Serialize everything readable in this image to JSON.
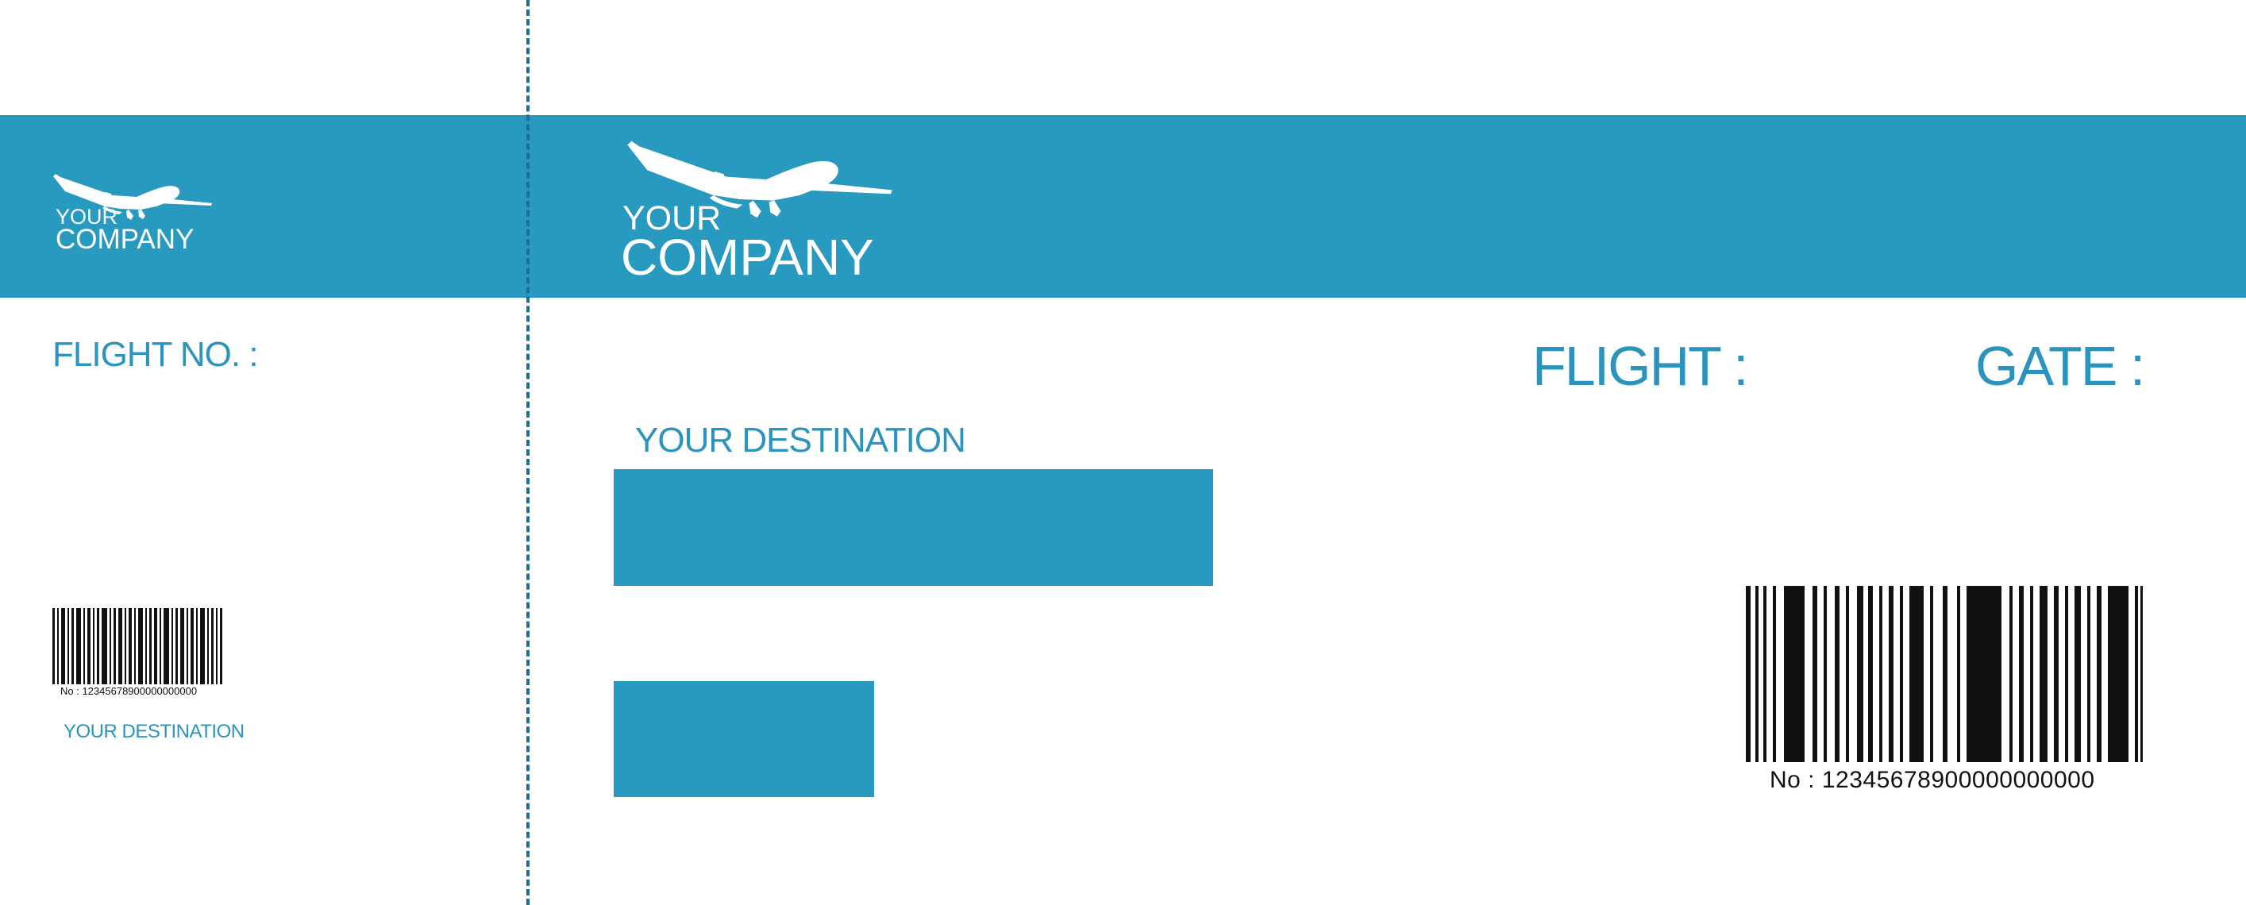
{
  "colors": {
    "brand_blue": "#2899bf",
    "text_blue": "#2a94bd",
    "perforation": "#1b6f93",
    "barcode": "#111111",
    "background": "#ffffff"
  },
  "stub": {
    "company_line1": "YOUR",
    "company_line2": "COMPANY",
    "plane_icon": "airplane-icon",
    "flight_no_label": "FLIGHT NO. :",
    "barcode_number": "No : 12345678900000000000",
    "destination_label": "YOUR DESTINATION"
  },
  "main": {
    "company_line1": "YOUR",
    "company_line2": "COMPANY",
    "plane_icon": "airplane-icon",
    "destination_label": "YOUR DESTINATION",
    "flight_label": "FLIGHT :",
    "gate_label": "GATE :",
    "barcode_number": "No : 12345678900000000000"
  }
}
